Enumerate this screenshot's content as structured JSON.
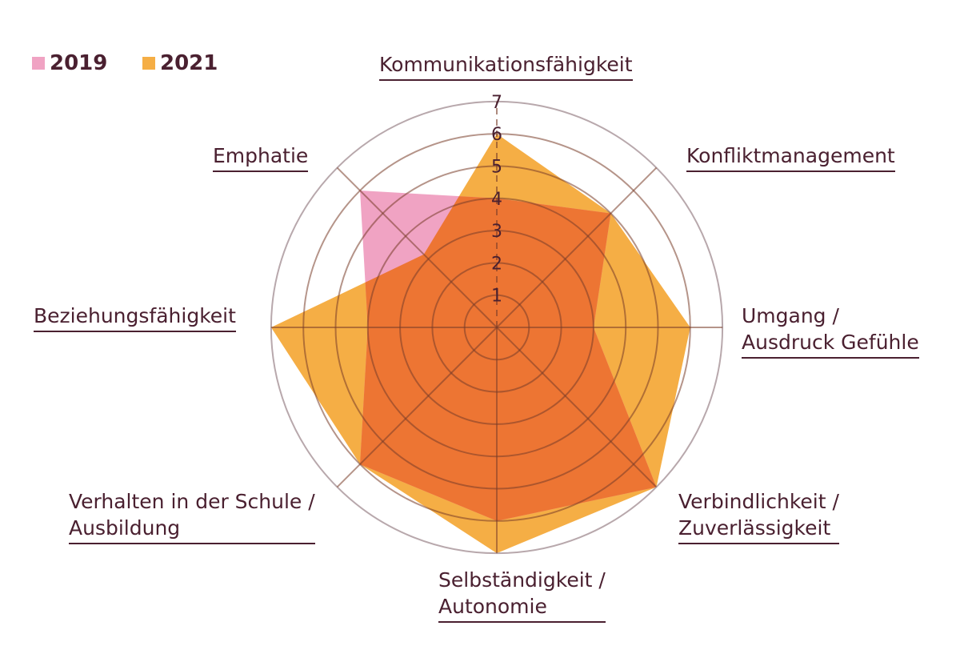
{
  "chart_data": {
    "type": "radar",
    "title": "",
    "axes": [
      "Kommunikationsfähigkeit",
      "Konfliktmanagement",
      "Umgang / Ausdruck Gefühle",
      "Verbindlichkeit / Zuverlässigkeit",
      "Selbständigkeit / Autonomie",
      "Verhalten in der Schule / Ausbildung",
      "Beziehungsfähigkeit",
      "Emphatie"
    ],
    "axis_lines": [
      [
        "Kommunikationsfähigkeit"
      ],
      [
        "Konfliktmanagement"
      ],
      [
        "Umgang /",
        "Ausdruck Gefühle"
      ],
      [
        "Verbindlichkeit /",
        "Zuverlässigkeit"
      ],
      [
        "Selbständigkeit /",
        "Autonomie"
      ],
      [
        "Verhalten in der Schule /",
        "Ausbildung"
      ],
      [
        "Beziehungsfähigkeit"
      ],
      [
        "Emphatie"
      ]
    ],
    "rlim": [
      0,
      7
    ],
    "ticks": [
      "1",
      "2",
      "3",
      "4",
      "5",
      "6",
      "7"
    ],
    "series": [
      {
        "name": "2019",
        "color": "#f0a3c3",
        "values": [
          4,
          5,
          3,
          7,
          6,
          6,
          4,
          6
        ]
      },
      {
        "name": "2021",
        "color": "#f5ae45",
        "values": [
          6,
          5,
          6,
          7,
          7,
          6,
          7,
          3.2
        ]
      }
    ],
    "overlap_color": "#ed7533",
    "legend": "top-left"
  }
}
